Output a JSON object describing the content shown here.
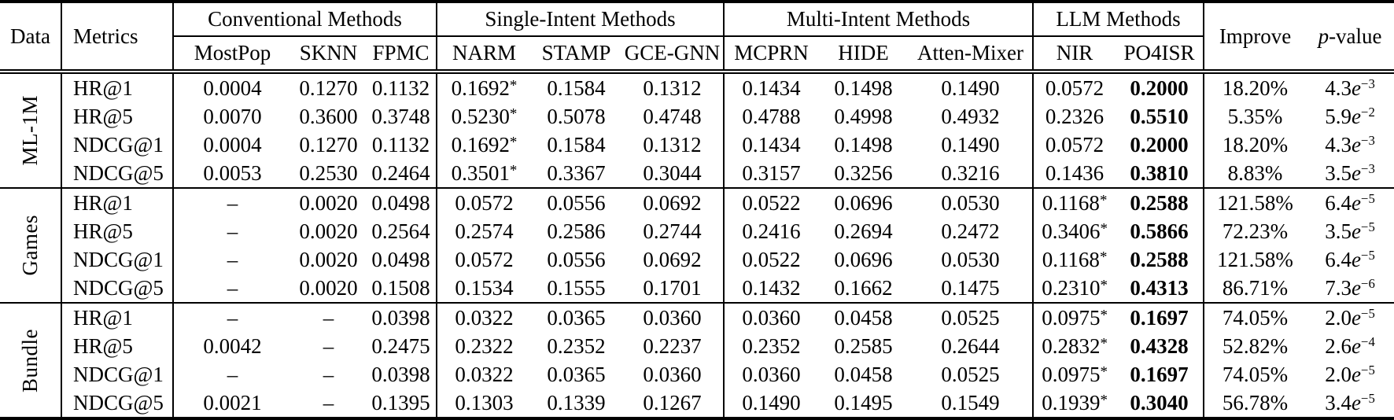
{
  "table": {
    "headers": {
      "data": "Data",
      "metrics": "Metrics",
      "improve": "Improve",
      "pvalue": "p-value",
      "groups": [
        {
          "label": "Conventional Methods",
          "methods": [
            "MostPop",
            "SKNN",
            "FPMC"
          ]
        },
        {
          "label": "Single-Intent Methods",
          "methods": [
            "NARM",
            "STAMP",
            "GCE-GNN"
          ]
        },
        {
          "label": "Multi-Intent Methods",
          "methods": [
            "MCPRN",
            "HIDE",
            "Atten-Mixer"
          ]
        },
        {
          "label": "LLM Methods",
          "methods": [
            "NIR",
            "PO4ISR"
          ]
        }
      ]
    },
    "bold_method": "PO4ISR",
    "colors": {
      "text": "#000000",
      "background": "#ffffff",
      "rule": "#000000"
    },
    "sections": [
      {
        "dataset": "ML-1M",
        "rows": [
          {
            "metric": "HR@1",
            "values": [
              "0.0004",
              "0.1270",
              "0.1132",
              "0.1692*",
              "0.1584",
              "0.1312",
              "0.1434",
              "0.1498",
              "0.1490",
              "0.0572",
              "0.2000"
            ],
            "improve": "18.20%",
            "pvalue": "4.3e-3"
          },
          {
            "metric": "HR@5",
            "values": [
              "0.0070",
              "0.3600",
              "0.3748",
              "0.5230*",
              "0.5078",
              "0.4748",
              "0.4788",
              "0.4998",
              "0.4932",
              "0.2326",
              "0.5510"
            ],
            "improve": "5.35%",
            "pvalue": "5.9e-2"
          },
          {
            "metric": "NDCG@1",
            "values": [
              "0.0004",
              "0.1270",
              "0.1132",
              "0.1692*",
              "0.1584",
              "0.1312",
              "0.1434",
              "0.1498",
              "0.1490",
              "0.0572",
              "0.2000"
            ],
            "improve": "18.20%",
            "pvalue": "4.3e-3"
          },
          {
            "metric": "NDCG@5",
            "values": [
              "0.0053",
              "0.2530",
              "0.2464",
              "0.3501*",
              "0.3367",
              "0.3044",
              "0.3157",
              "0.3256",
              "0.3216",
              "0.1436",
              "0.3810"
            ],
            "improve": "8.83%",
            "pvalue": "3.5e-3"
          }
        ]
      },
      {
        "dataset": "Games",
        "rows": [
          {
            "metric": "HR@1",
            "values": [
              "–",
              "0.0020",
              "0.0498",
              "0.0572",
              "0.0556",
              "0.0692",
              "0.0522",
              "0.0696",
              "0.0530",
              "0.1168*",
              "0.2588"
            ],
            "improve": "121.58%",
            "pvalue": "6.4e-5"
          },
          {
            "metric": "HR@5",
            "values": [
              "–",
              "0.0020",
              "0.2564",
              "0.2574",
              "0.2586",
              "0.2744",
              "0.2416",
              "0.2694",
              "0.2472",
              "0.3406*",
              "0.5866"
            ],
            "improve": "72.23%",
            "pvalue": "3.5e-5"
          },
          {
            "metric": "NDCG@1",
            "values": [
              "–",
              "0.0020",
              "0.0498",
              "0.0572",
              "0.0556",
              "0.0692",
              "0.0522",
              "0.0696",
              "0.0530",
              "0.1168*",
              "0.2588"
            ],
            "improve": "121.58%",
            "pvalue": "6.4e-5"
          },
          {
            "metric": "NDCG@5",
            "values": [
              "–",
              "0.0020",
              "0.1508",
              "0.1534",
              "0.1555",
              "0.1701",
              "0.1432",
              "0.1662",
              "0.1475",
              "0.2310*",
              "0.4313"
            ],
            "improve": "86.71%",
            "pvalue": "7.3e-6"
          }
        ]
      },
      {
        "dataset": "Bundle",
        "rows": [
          {
            "metric": "HR@1",
            "values": [
              "–",
              "–",
              "0.0398",
              "0.0322",
              "0.0365",
              "0.0360",
              "0.0360",
              "0.0458",
              "0.0525",
              "0.0975*",
              "0.1697"
            ],
            "improve": "74.05%",
            "pvalue": "2.0e-5"
          },
          {
            "metric": "HR@5",
            "values": [
              "0.0042",
              "–",
              "0.2475",
              "0.2322",
              "0.2352",
              "0.2237",
              "0.2352",
              "0.2585",
              "0.2644",
              "0.2832*",
              "0.4328"
            ],
            "improve": "52.82%",
            "pvalue": "2.6e-4"
          },
          {
            "metric": "NDCG@1",
            "values": [
              "–",
              "–",
              "0.0398",
              "0.0322",
              "0.0365",
              "0.0360",
              "0.0360",
              "0.0458",
              "0.0525",
              "0.0975*",
              "0.1697"
            ],
            "improve": "74.05%",
            "pvalue": "2.0e-5"
          },
          {
            "metric": "NDCG@5",
            "values": [
              "0.0021",
              "–",
              "0.1395",
              "0.1303",
              "0.1339",
              "0.1267",
              "0.1490",
              "0.1495",
              "0.1549",
              "0.1939*",
              "0.3040"
            ],
            "improve": "56.78%",
            "pvalue": "3.4e-5"
          }
        ]
      }
    ]
  }
}
